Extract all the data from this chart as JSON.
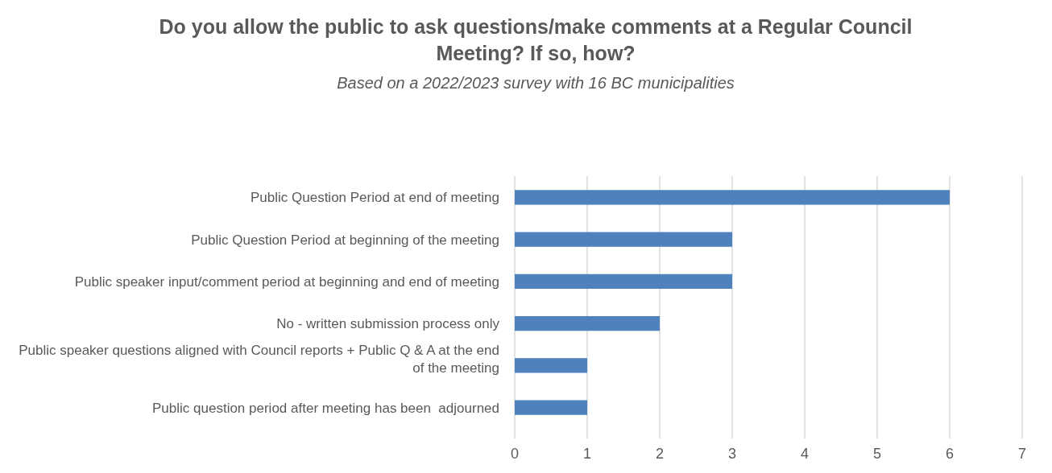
{
  "chart_data": {
    "type": "bar",
    "orientation": "horizontal",
    "title": "Do you allow the public to ask questions/make comments at a Regular Council Meeting? If so, how?",
    "subtitle": "Based on a 2022/2023 survey with 16 BC municipalities",
    "categories": [
      "Public Question Period at end of meeting",
      "Public Question Period at beginning of the meeting",
      "Public speaker input/comment period at beginning and end of meeting",
      "No - written submission process only",
      "Public speaker questions aligned with Council reports + Public Q & A at the end of the meeting",
      "Public question period after meeting has been  adjourned"
    ],
    "values": [
      6,
      3,
      3,
      2,
      1,
      1
    ],
    "color": "#4f81bd",
    "xlim": [
      0,
      7
    ],
    "xticks": [
      0,
      1,
      2,
      3,
      4,
      5,
      6,
      7
    ],
    "grid": "x"
  }
}
